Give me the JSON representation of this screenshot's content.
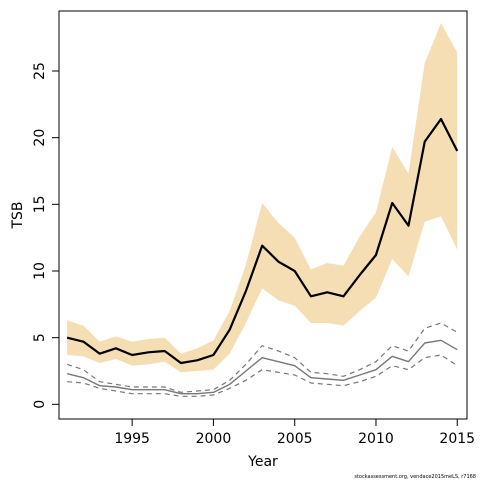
{
  "chart_data": {
    "type": "line",
    "xlabel": "Year",
    "ylabel": "TSB",
    "xlim": [
      1990.5,
      2015.6
    ],
    "ylim": [
      -1.1,
      29.5
    ],
    "xticks": [
      1995,
      2000,
      2005,
      2010,
      2015
    ],
    "yticks": [
      0,
      5,
      10,
      15,
      20,
      25
    ],
    "credit": "stockassessment.org, vendace2015meLS, r7168",
    "colors": {
      "band": "#f5deb3",
      "main": "#000000",
      "secondary": "#777777"
    },
    "x": [
      1991,
      1992,
      1993,
      1994,
      1995,
      1996,
      1997,
      1998,
      1999,
      2000,
      2001,
      2002,
      2003,
      2004,
      2005,
      2006,
      2007,
      2008,
      2009,
      2010,
      2011,
      2012,
      2013,
      2014,
      2015
    ],
    "series": [
      {
        "role": "band-upper",
        "values": [
          6.3,
          5.9,
          4.7,
          5.1,
          4.7,
          4.9,
          5.0,
          3.8,
          4.2,
          4.8,
          7.0,
          10.5,
          15.1,
          13.6,
          12.5,
          10.1,
          10.6,
          10.4,
          12.6,
          14.4,
          19.3,
          17.3,
          25.6,
          28.6,
          26.4
        ]
      },
      {
        "role": "band-lower",
        "values": [
          3.7,
          3.6,
          3.1,
          3.4,
          2.9,
          3.0,
          3.2,
          2.4,
          2.5,
          2.6,
          3.8,
          6.1,
          8.7,
          7.8,
          7.4,
          6.1,
          6.1,
          5.9,
          7.0,
          8.0,
          10.9,
          9.6,
          13.7,
          14.1,
          11.6
        ]
      },
      {
        "role": "main",
        "values": [
          5.0,
          4.7,
          3.8,
          4.2,
          3.7,
          3.9,
          4.0,
          3.1,
          3.3,
          3.7,
          5.6,
          8.5,
          11.9,
          10.7,
          10.0,
          8.1,
          8.4,
          8.1,
          9.7,
          11.2,
          15.1,
          13.4,
          19.7,
          21.4,
          19.0
        ]
      },
      {
        "role": "secondary",
        "values": [
          2.3,
          2.0,
          1.4,
          1.3,
          1.1,
          1.1,
          1.1,
          0.8,
          0.8,
          0.9,
          1.5,
          2.5,
          3.5,
          3.2,
          2.9,
          2.0,
          1.9,
          1.8,
          2.2,
          2.6,
          3.6,
          3.2,
          4.6,
          4.8,
          4.1
        ]
      },
      {
        "role": "secondary-upper",
        "values": [
          3.0,
          2.6,
          1.7,
          1.5,
          1.3,
          1.3,
          1.3,
          0.9,
          1.0,
          1.1,
          1.8,
          3.0,
          4.4,
          4.0,
          3.5,
          2.4,
          2.3,
          2.1,
          2.6,
          3.2,
          4.4,
          4.0,
          5.7,
          6.1,
          5.4
        ]
      },
      {
        "role": "secondary-lower",
        "values": [
          1.7,
          1.6,
          1.2,
          1.0,
          0.8,
          0.8,
          0.8,
          0.6,
          0.6,
          0.7,
          1.2,
          1.8,
          2.6,
          2.4,
          2.2,
          1.6,
          1.5,
          1.4,
          1.7,
          2.1,
          2.9,
          2.6,
          3.5,
          3.7,
          2.9
        ]
      }
    ]
  }
}
